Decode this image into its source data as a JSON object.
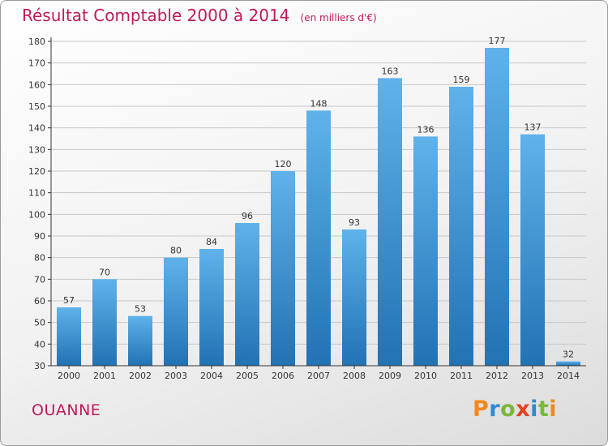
{
  "header": {
    "title": "Résultat Comptable 2000 à 2014",
    "subtitle": "(en milliers d'€)"
  },
  "footer": {
    "place": "OUANNE",
    "brand": "Proxiti"
  },
  "colors": {
    "title": "#c2185b",
    "bar_top": "#5fb2ea",
    "bar_bottom": "#2272b4",
    "grid": "#c8c8c8",
    "axis": "#333333"
  },
  "chart_data": {
    "type": "bar",
    "title": "Résultat Comptable 2000 à 2014",
    "subtitle": "(en milliers d'€)",
    "xlabel": "",
    "ylabel": "",
    "categories": [
      "2000",
      "2001",
      "2002",
      "2003",
      "2004",
      "2005",
      "2006",
      "2007",
      "2008",
      "2009",
      "2010",
      "2011",
      "2012",
      "2013",
      "2014"
    ],
    "values": [
      57,
      70,
      53,
      80,
      84,
      96,
      120,
      148,
      93,
      163,
      136,
      159,
      177,
      137,
      32
    ],
    "ylim": [
      30,
      180
    ],
    "yticks": [
      30,
      40,
      50,
      60,
      70,
      80,
      90,
      100,
      110,
      120,
      130,
      140,
      150,
      160,
      170,
      180
    ],
    "grid": true,
    "data_labels": true
  }
}
